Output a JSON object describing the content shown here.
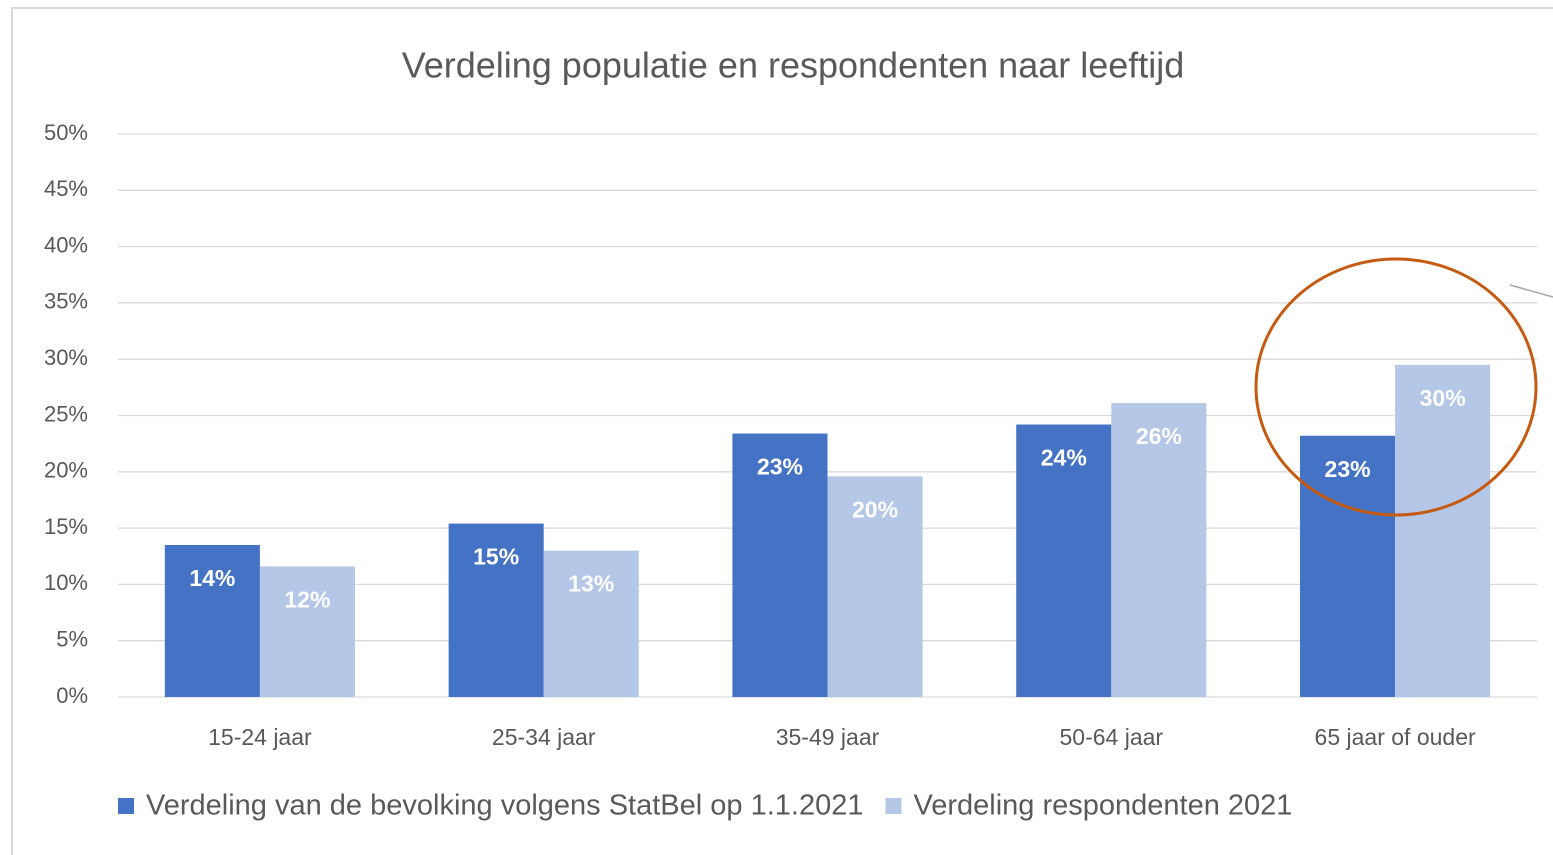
{
  "chart_data": {
    "type": "bar",
    "title": "Verdeling populatie en respondenten naar leeftijd",
    "categories": [
      "15-24 jaar",
      "25-34 jaar",
      "35-49 jaar",
      "50-64 jaar",
      "65 jaar of ouder"
    ],
    "series": [
      {
        "name": "Verdeling van de bevolking volgens StatBel op 1.1.2021",
        "color": "#4472c4",
        "values": [
          13.5,
          15.4,
          23.4,
          24.2,
          23.2
        ],
        "value_labels": [
          "14%",
          "15%",
          "23%",
          "24%",
          "23%"
        ]
      },
      {
        "name": "Verdeling respondenten 2021",
        "color": "#b4c7e7",
        "values": [
          11.6,
          13.0,
          19.6,
          26.1,
          29.5
        ],
        "value_labels": [
          "12%",
          "13%",
          "20%",
          "26%",
          "30%"
        ]
      }
    ],
    "ylim": [
      0,
      50
    ],
    "yticks": [
      {
        "value": 0,
        "label": "0%"
      },
      {
        "value": 5,
        "label": "5%"
      },
      {
        "value": 10,
        "label": "10%"
      },
      {
        "value": 15,
        "label": "15%"
      },
      {
        "value": 20,
        "label": "20%"
      },
      {
        "value": 25,
        "label": "25%"
      },
      {
        "value": 30,
        "label": "30%"
      },
      {
        "value": 35,
        "label": "35%"
      },
      {
        "value": 40,
        "label": "40%"
      },
      {
        "value": 45,
        "label": "45%"
      },
      {
        "value": 50,
        "label": "50%"
      }
    ],
    "grid": true,
    "legend": "bottom"
  }
}
